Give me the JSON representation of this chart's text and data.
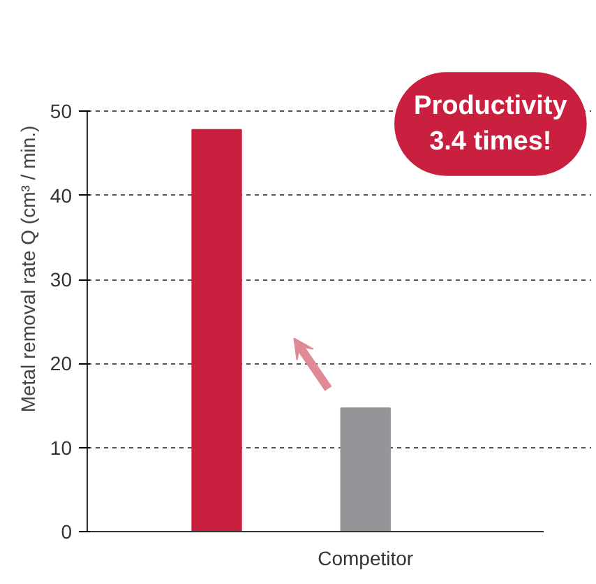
{
  "chart_data": {
    "type": "bar",
    "ylabel": "Metal removal rate Q (cm³ / min.)",
    "categories": [
      null,
      "Competitor"
    ],
    "values": [
      47.8,
      14.7
    ],
    "colors": [
      "#c8203e",
      "#939598"
    ],
    "ylim": [
      0,
      50
    ],
    "yticks": [
      0,
      10,
      20,
      30,
      40,
      50
    ],
    "grid": "y",
    "annotations": [
      "Productivity\n3.4 times!"
    ]
  }
}
